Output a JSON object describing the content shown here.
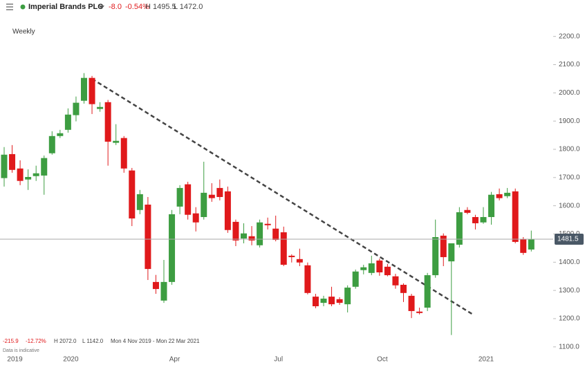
{
  "header": {
    "name": "Imperial Brands PLC",
    "change": "-8.0",
    "change_pct": "-0.54%",
    "high": "H 1495.5",
    "low": "L 1472.0"
  },
  "footer": {
    "change": "-215.9",
    "change_pct": "-12.72%",
    "high": "H 2072.0",
    "low": "L 1142.0",
    "range": "Mon 4 Nov 2019 - Mon 22 Mar 2021",
    "note": "Data is indicative"
  },
  "chart_data": {
    "type": "candlestick",
    "subtitle": "Weekly",
    "categories": [
      null,
      "2019",
      null,
      null,
      null,
      null,
      null,
      null,
      "2020",
      null,
      null,
      null,
      null,
      null,
      null,
      null,
      null,
      null,
      null,
      null,
      null,
      "Apr",
      null,
      null,
      null,
      null,
      null,
      null,
      null,
      null,
      null,
      null,
      null,
      null,
      "Jul",
      null,
      null,
      null,
      null,
      null,
      null,
      null,
      null,
      null,
      null,
      null,
      null,
      "Oct",
      null,
      null,
      null,
      null,
      null,
      null,
      null,
      null,
      null,
      null,
      null,
      null,
      "2021",
      null,
      null,
      null,
      null,
      null,
      null
    ],
    "open": [
      1698,
      1783,
      1732,
      1693,
      1705,
      1707,
      1786,
      1847,
      1869,
      1921,
      1972,
      2053,
      1943,
      1967,
      1823,
      1840,
      1725,
      1585,
      1604,
      1330,
      1264,
      1330,
      1597,
      1676,
      1573,
      1560,
      1639,
      1663,
      1651,
      1543,
      1484,
      1492,
      1460,
      1536,
      1519,
      1506,
      1423,
      1411,
      1389,
      1278,
      1256,
      1278,
      1269,
      1251,
      1313,
      1372,
      1362,
      1406,
      1384,
      1350,
      1320,
      1281,
      1225,
      1239,
      1354,
      1494,
      1403,
      1462,
      1585,
      1560,
      1541,
      1560,
      1641,
      1634,
      1651,
      1482,
      1445
    ],
    "high": [
      1808,
      1815,
      1761,
      1729,
      1742,
      1778,
      1864,
      1869,
      1945,
      1987,
      2070,
      2060,
      1967,
      1975,
      1889,
      1847,
      1734,
      1656,
      1631,
      1355,
      1408,
      1585,
      1673,
      1685,
      1595,
      1756,
      1680,
      1693,
      1668,
      1551,
      1538,
      1528,
      1551,
      1558,
      1565,
      1526,
      1428,
      1448,
      1399,
      1288,
      1281,
      1313,
      1276,
      1318,
      1374,
      1391,
      1423,
      1413,
      1394,
      1359,
      1325,
      1288,
      1239,
      1362,
      1551,
      1502,
      1467,
      1595,
      1595,
      1568,
      1595,
      1649,
      1661,
      1663,
      1661,
      1489,
      1512
    ],
    "low": [
      1668,
      1717,
      1673,
      1656,
      1688,
      1639,
      1781,
      1840,
      1859,
      1899,
      1962,
      1925,
      1933,
      1742,
      1815,
      1717,
      1528,
      1570,
      1337,
      1288,
      1256,
      1320,
      1570,
      1551,
      1509,
      1551,
      1614,
      1619,
      1504,
      1457,
      1467,
      1460,
      1452,
      1516,
      1474,
      1386,
      1399,
      1386,
      1286,
      1237,
      1244,
      1244,
      1249,
      1222,
      1306,
      1357,
      1354,
      1352,
      1350,
      1306,
      1259,
      1202,
      1215,
      1227,
      1345,
      1386,
      1142,
      1452,
      1570,
      1516,
      1536,
      1533,
      1619,
      1627,
      1467,
      1426,
      1438
    ],
    "close": [
      1781,
      1727,
      1688,
      1702,
      1715,
      1769,
      1847,
      1857,
      1923,
      1965,
      2053,
      1960,
      1950,
      1827,
      1830,
      1732,
      1555,
      1641,
      1376,
      1305,
      1330,
      1570,
      1663,
      1568,
      1541,
      1646,
      1627,
      1631,
      1514,
      1477,
      1502,
      1477,
      1541,
      1531,
      1479,
      1391,
      1418,
      1399,
      1291,
      1244,
      1271,
      1251,
      1256,
      1310,
      1367,
      1382,
      1396,
      1364,
      1354,
      1318,
      1291,
      1227,
      1220,
      1354,
      1489,
      1418,
      1467,
      1577,
      1575,
      1538,
      1560,
      1639,
      1627,
      1646,
      1472,
      1433,
      1481.5
    ],
    "up_color": "#3d9d41",
    "down_color": "#e0191b",
    "last_price": 1481.5,
    "ylim": [
      1075,
      2280
    ],
    "yticks": [
      {
        "value": 1100,
        "label": "1100.0"
      },
      {
        "value": 1200,
        "label": "1200.0"
      },
      {
        "value": 1300,
        "label": "1300.0"
      },
      {
        "value": 1400,
        "label": "1400.0"
      },
      {
        "value": 1500,
        "label": "1500.0"
      },
      {
        "value": 1600,
        "label": "1600.0"
      },
      {
        "value": 1700,
        "label": "1700.0"
      },
      {
        "value": 1800,
        "label": "1800.0"
      },
      {
        "value": 1900,
        "label": "1900.0"
      },
      {
        "value": 2000,
        "label": "2000.0"
      },
      {
        "value": 2100,
        "label": "2100.0"
      },
      {
        "value": 2200,
        "label": "2200.0"
      }
    ]
  }
}
